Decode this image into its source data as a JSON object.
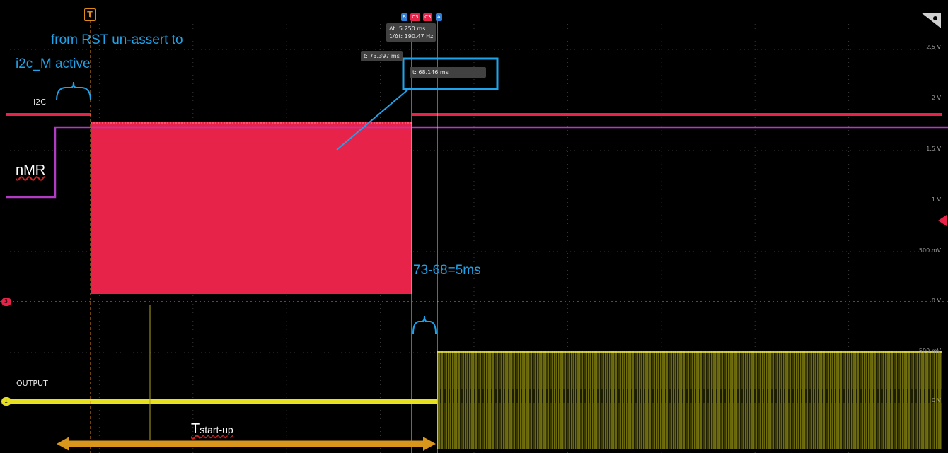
{
  "annotations": {
    "rst_line1": "from RST un-assert to",
    "rst_line2": "i2c_M active",
    "diff": "73-68=5ms",
    "tstart_main": "T",
    "tstart_sub": "start-up"
  },
  "channels": {
    "i2c": "I2C",
    "nmr": "nMR",
    "output": "OUTPUT"
  },
  "cursor_readouts": {
    "delta_t": "Δt: 5.250 ms",
    "inv_delta_t": "1/Δt: 190.47 Hz",
    "t_b": "t: 73.397 ms",
    "t_a": "t: 68.146 ms"
  },
  "cursor_badges": {
    "b": "B",
    "c3_left": "C3",
    "c3_right": "C3",
    "a": "A"
  },
  "trigger_badge": "T",
  "ch3_marker": "3",
  "ch1_marker": "1",
  "y_axis_labels": [
    "2.5 V",
    "2 V",
    "1.5 V",
    "1 V",
    "500 mV",
    "0 V",
    "500 mV",
    "0 V"
  ],
  "colors": {
    "i2c": "#e8234a",
    "nmr": "#b23bc4",
    "output": "#e6e020",
    "cursor_annotation": "#1fa3ea",
    "tstartup_arrow": "#d9961c",
    "trigger": "#e08a1a",
    "background": "#000000"
  }
}
